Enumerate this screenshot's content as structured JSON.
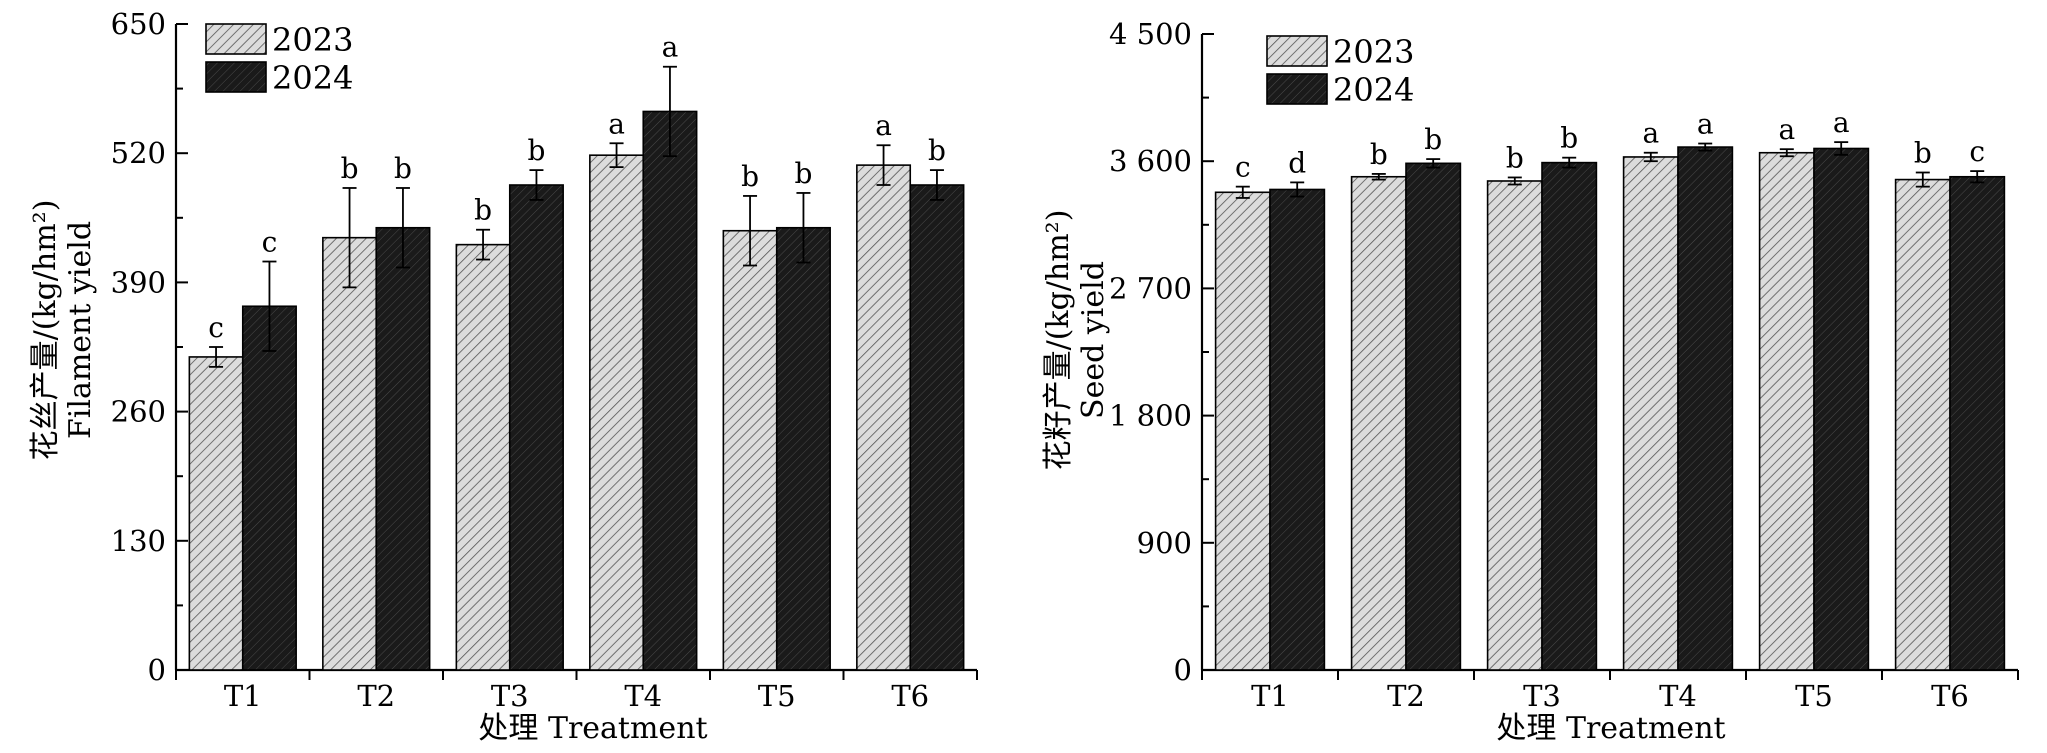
{
  "chart_data": [
    {
      "type": "bar",
      "ylabel_cn": "花丝产量/(kg/hm²)",
      "ylabel_en": "Filament yield",
      "xlabel": "处理 Treatment",
      "categories": [
        "T1",
        "T2",
        "T3",
        "T4",
        "T5",
        "T6"
      ],
      "ylim": [
        0,
        650
      ],
      "yticks": [
        0,
        130,
        260,
        390,
        520,
        650
      ],
      "ytick_labels": [
        "0",
        "130",
        "260",
        "390",
        "520",
        "650"
      ],
      "series": [
        {
          "name": "2023",
          "values": [
            315,
            435,
            428,
            518,
            442,
            508
          ],
          "errors": [
            10,
            50,
            15,
            12,
            35,
            20
          ],
          "letters": [
            "c",
            "b",
            "b",
            "a",
            "b",
            "a"
          ]
        },
        {
          "name": "2024",
          "values": [
            366,
            445,
            488,
            562,
            445,
            488
          ],
          "errors": [
            45,
            40,
            15,
            45,
            35,
            15
          ],
          "letters": [
            "c",
            "b",
            "b",
            "a",
            "b",
            "b"
          ]
        }
      ]
    },
    {
      "type": "bar",
      "ylabel_cn": "花籽产量/(kg/hm²)",
      "ylabel_en": "Seed yield",
      "xlabel": "处理 Treatment",
      "categories": [
        "T1",
        "T2",
        "T3",
        "T4",
        "T5",
        "T6"
      ],
      "ylim": [
        0,
        4500
      ],
      "yticks": [
        0,
        900,
        1800,
        2700,
        3600,
        4500
      ],
      "ytick_labels": [
        "0",
        "900",
        "1 800",
        "2 700",
        "3 600",
        "4 500"
      ],
      "series": [
        {
          "name": "2023",
          "values": [
            3380,
            3490,
            3460,
            3630,
            3660,
            3470
          ],
          "errors": [
            40,
            20,
            25,
            30,
            25,
            50
          ],
          "letters": [
            "c",
            "b",
            "b",
            "a",
            "a",
            "b"
          ]
        },
        {
          "name": "2024",
          "values": [
            3400,
            3585,
            3590,
            3700,
            3690,
            3490
          ],
          "errors": [
            50,
            30,
            35,
            25,
            45,
            40
          ],
          "letters": [
            "d",
            "b",
            "b",
            "a",
            "a",
            "c"
          ]
        }
      ]
    }
  ]
}
